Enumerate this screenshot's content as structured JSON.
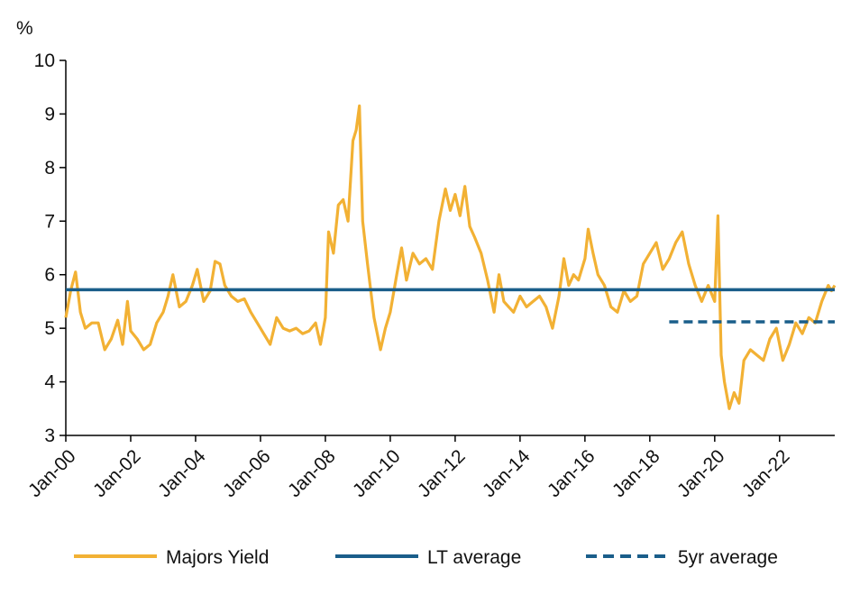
{
  "chart_data": {
    "type": "line",
    "y_unit": "%",
    "ylim": [
      3,
      10
    ],
    "yticks": [
      3,
      4,
      5,
      6,
      7,
      8,
      9,
      10
    ],
    "xlim": [
      2000.0,
      2023.7
    ],
    "xticks": [
      {
        "label": "Jan-00",
        "x": 2000
      },
      {
        "label": "Jan-02",
        "x": 2002
      },
      {
        "label": "Jan-04",
        "x": 2004
      },
      {
        "label": "Jan-06",
        "x": 2006
      },
      {
        "label": "Jan-08",
        "x": 2008
      },
      {
        "label": "Jan-10",
        "x": 2010
      },
      {
        "label": "Jan-12",
        "x": 2012
      },
      {
        "label": "Jan-14",
        "x": 2014
      },
      {
        "label": "Jan-16",
        "x": 2016
      },
      {
        "label": "Jan-18",
        "x": 2018
      },
      {
        "label": "Jan-20",
        "x": 2020
      },
      {
        "label": "Jan-22",
        "x": 2022
      }
    ],
    "grid": false,
    "legend_position": "bottom",
    "series": [
      {
        "name": "Majors Yield",
        "color": "#f2b134",
        "style": "solid",
        "x": [
          2000.0,
          2000.15,
          2000.3,
          2000.45,
          2000.6,
          2000.8,
          2001.0,
          2001.2,
          2001.4,
          2001.6,
          2001.75,
          2001.9,
          2002.0,
          2002.2,
          2002.4,
          2002.6,
          2002.8,
          2003.0,
          2003.15,
          2003.3,
          2003.5,
          2003.7,
          2003.9,
          2004.05,
          2004.25,
          2004.45,
          2004.6,
          2004.75,
          2004.9,
          2005.1,
          2005.3,
          2005.5,
          2005.7,
          2005.9,
          2006.1,
          2006.3,
          2006.5,
          2006.7,
          2006.9,
          2007.1,
          2007.3,
          2007.5,
          2007.7,
          2007.85,
          2008.0,
          2008.1,
          2008.25,
          2008.4,
          2008.55,
          2008.7,
          2008.85,
          2008.95,
          2009.05,
          2009.15,
          2009.3,
          2009.5,
          2009.7,
          2009.85,
          2010.0,
          2010.2,
          2010.35,
          2010.5,
          2010.7,
          2010.9,
          2011.1,
          2011.3,
          2011.5,
          2011.7,
          2011.85,
          2012.0,
          2012.15,
          2012.3,
          2012.45,
          2012.6,
          2012.8,
          2013.0,
          2013.2,
          2013.35,
          2013.5,
          2013.65,
          2013.8,
          2014.0,
          2014.2,
          2014.4,
          2014.6,
          2014.8,
          2015.0,
          2015.2,
          2015.35,
          2015.5,
          2015.65,
          2015.8,
          2016.0,
          2016.1,
          2016.25,
          2016.4,
          2016.6,
          2016.8,
          2017.0,
          2017.2,
          2017.4,
          2017.6,
          2017.8,
          2018.0,
          2018.2,
          2018.4,
          2018.6,
          2018.8,
          2019.0,
          2019.2,
          2019.4,
          2019.6,
          2019.8,
          2020.0,
          2020.1,
          2020.2,
          2020.3,
          2020.45,
          2020.6,
          2020.75,
          2020.9,
          2021.1,
          2021.3,
          2021.5,
          2021.7,
          2021.9,
          2022.1,
          2022.3,
          2022.5,
          2022.7,
          2022.9,
          2023.1,
          2023.3,
          2023.5,
          2023.6,
          2023.7
        ],
        "y": [
          5.2,
          5.7,
          6.05,
          5.3,
          5.0,
          5.1,
          5.1,
          4.6,
          4.8,
          5.15,
          4.7,
          5.5,
          4.95,
          4.8,
          4.6,
          4.7,
          5.1,
          5.3,
          5.6,
          6.0,
          5.4,
          5.5,
          5.8,
          6.1,
          5.5,
          5.7,
          6.25,
          6.2,
          5.8,
          5.6,
          5.5,
          5.55,
          5.3,
          5.1,
          4.9,
          4.7,
          5.2,
          5.0,
          4.95,
          5.0,
          4.9,
          4.95,
          5.1,
          4.7,
          5.2,
          6.8,
          6.4,
          7.3,
          7.4,
          7.0,
          8.5,
          8.7,
          9.15,
          7.0,
          6.2,
          5.2,
          4.6,
          5.0,
          5.3,
          6.0,
          6.5,
          5.9,
          6.4,
          6.2,
          6.3,
          6.1,
          7.0,
          7.6,
          7.2,
          7.5,
          7.1,
          7.65,
          6.9,
          6.7,
          6.4,
          5.9,
          5.3,
          6.0,
          5.5,
          5.4,
          5.3,
          5.6,
          5.4,
          5.5,
          5.6,
          5.4,
          5.0,
          5.6,
          6.3,
          5.8,
          6.0,
          5.9,
          6.3,
          6.85,
          6.4,
          6.0,
          5.8,
          5.4,
          5.3,
          5.7,
          5.5,
          5.6,
          6.2,
          6.4,
          6.6,
          6.1,
          6.3,
          6.6,
          6.8,
          6.2,
          5.8,
          5.5,
          5.8,
          5.5,
          7.1,
          4.5,
          4.0,
          3.5,
          3.8,
          3.6,
          4.4,
          4.6,
          4.5,
          4.4,
          4.8,
          5.0,
          4.4,
          4.7,
          5.1,
          4.9,
          5.2,
          5.1,
          5.5,
          5.8,
          5.7,
          5.8
        ]
      },
      {
        "name": "LT average",
        "color": "#1a5e8a",
        "style": "solid",
        "x": [
          2000.0,
          2023.7
        ],
        "y": [
          5.72,
          5.72
        ]
      },
      {
        "name": "5yr average",
        "color": "#1a5e8a",
        "style": "dashed",
        "x": [
          2018.6,
          2023.7
        ],
        "y": [
          5.12,
          5.12
        ]
      }
    ]
  }
}
